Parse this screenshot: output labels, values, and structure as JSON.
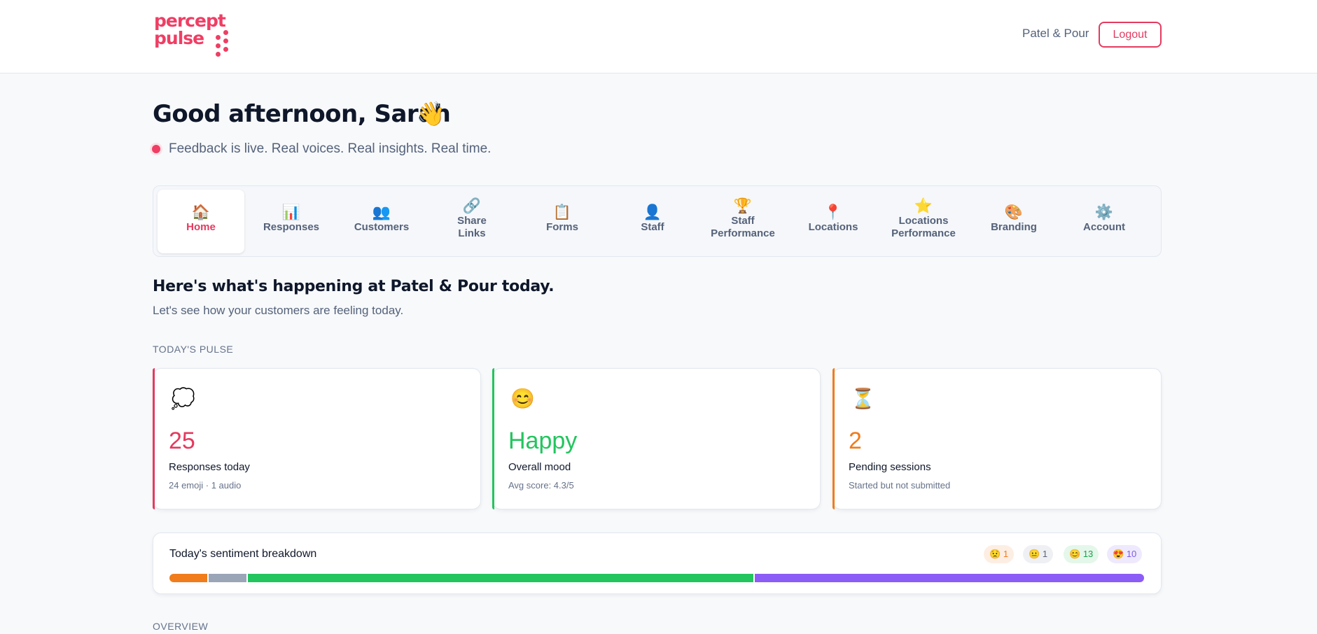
{
  "header": {
    "logo_line1": "percept",
    "logo_line2": "pulse",
    "business_name": "Patel & Pour",
    "logout_label": "Logout"
  },
  "greeting": {
    "text": "Good afternoon, Sarah",
    "wave_icon": "👋",
    "live_text": "Feedback is live. Real voices. Real insights. Real time."
  },
  "nav": {
    "items": [
      {
        "icon": "🏠",
        "label": "Home",
        "active": true
      },
      {
        "icon": "📊",
        "label": "Responses"
      },
      {
        "icon": "👥",
        "label": "Customers"
      },
      {
        "icon": "🔗",
        "label": "Share Links"
      },
      {
        "icon": "📋",
        "label": "Forms"
      },
      {
        "icon": "👤",
        "label": "Staff"
      },
      {
        "icon": "🏆",
        "label": "Staff Performance"
      },
      {
        "icon": "📍",
        "label": "Locations"
      },
      {
        "icon": "⭐",
        "label": "Locations Performance"
      },
      {
        "icon": "🎨",
        "label": "Branding"
      },
      {
        "icon": "⚙️",
        "label": "Account"
      }
    ]
  },
  "main": {
    "heading": "Here's what's happening at Patel & Pour today.",
    "subheading": "Let's see how your customers are feeling today.",
    "pulse_label": "TODAY'S PULSE",
    "overview_label": "OVERVIEW"
  },
  "cards": [
    {
      "icon": "💭",
      "value": "25",
      "label": "Responses today",
      "sub": "24 emoji · 1 audio",
      "color": "#e43a5f"
    },
    {
      "icon": "😊",
      "value": "Happy",
      "label": "Overall mood",
      "sub": "Avg score: 4.3/5",
      "color": "#22c55e"
    },
    {
      "icon": "⏳",
      "value": "2",
      "label": "Pending sessions",
      "sub": "Started but not submitted",
      "color": "#f07c1c"
    }
  ],
  "sentiment": {
    "title": "Today's sentiment breakdown",
    "chips": [
      {
        "icon": "😟",
        "count": "1",
        "color": "#f07c1c",
        "bg": "#fdeee3"
      },
      {
        "icon": "😐",
        "count": "1",
        "color": "#5b6478",
        "bg": "#eef0f4"
      },
      {
        "icon": "😊",
        "count": "13",
        "color": "#16a34a",
        "bg": "#e4f7ea"
      },
      {
        "icon": "😍",
        "count": "10",
        "color": "#7c5ce6",
        "bg": "#efe9fd"
      }
    ]
  },
  "colors": {
    "accent": "#e43a5f",
    "positive": "#22c55e",
    "warning": "#f07c1c",
    "neutral": "#9aa5b8",
    "love": "#8b5cf6"
  }
}
